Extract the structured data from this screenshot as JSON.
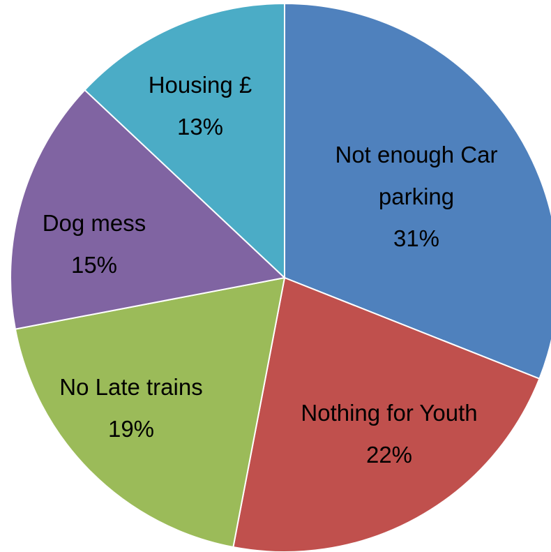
{
  "chart_data": {
    "type": "pie",
    "categories": [
      "Not enough Car parking",
      "Nothing for Youth",
      "No Late trains",
      "Dog mess",
      "Housing £"
    ],
    "values": [
      31,
      22,
      19,
      15,
      13
    ],
    "value_labels": [
      "31%",
      "22%",
      "19%",
      "15%",
      "13%"
    ],
    "colors": [
      "#4f81bd",
      "#c0504d",
      "#9bbb59",
      "#8064a2",
      "#4bacc6"
    ]
  }
}
